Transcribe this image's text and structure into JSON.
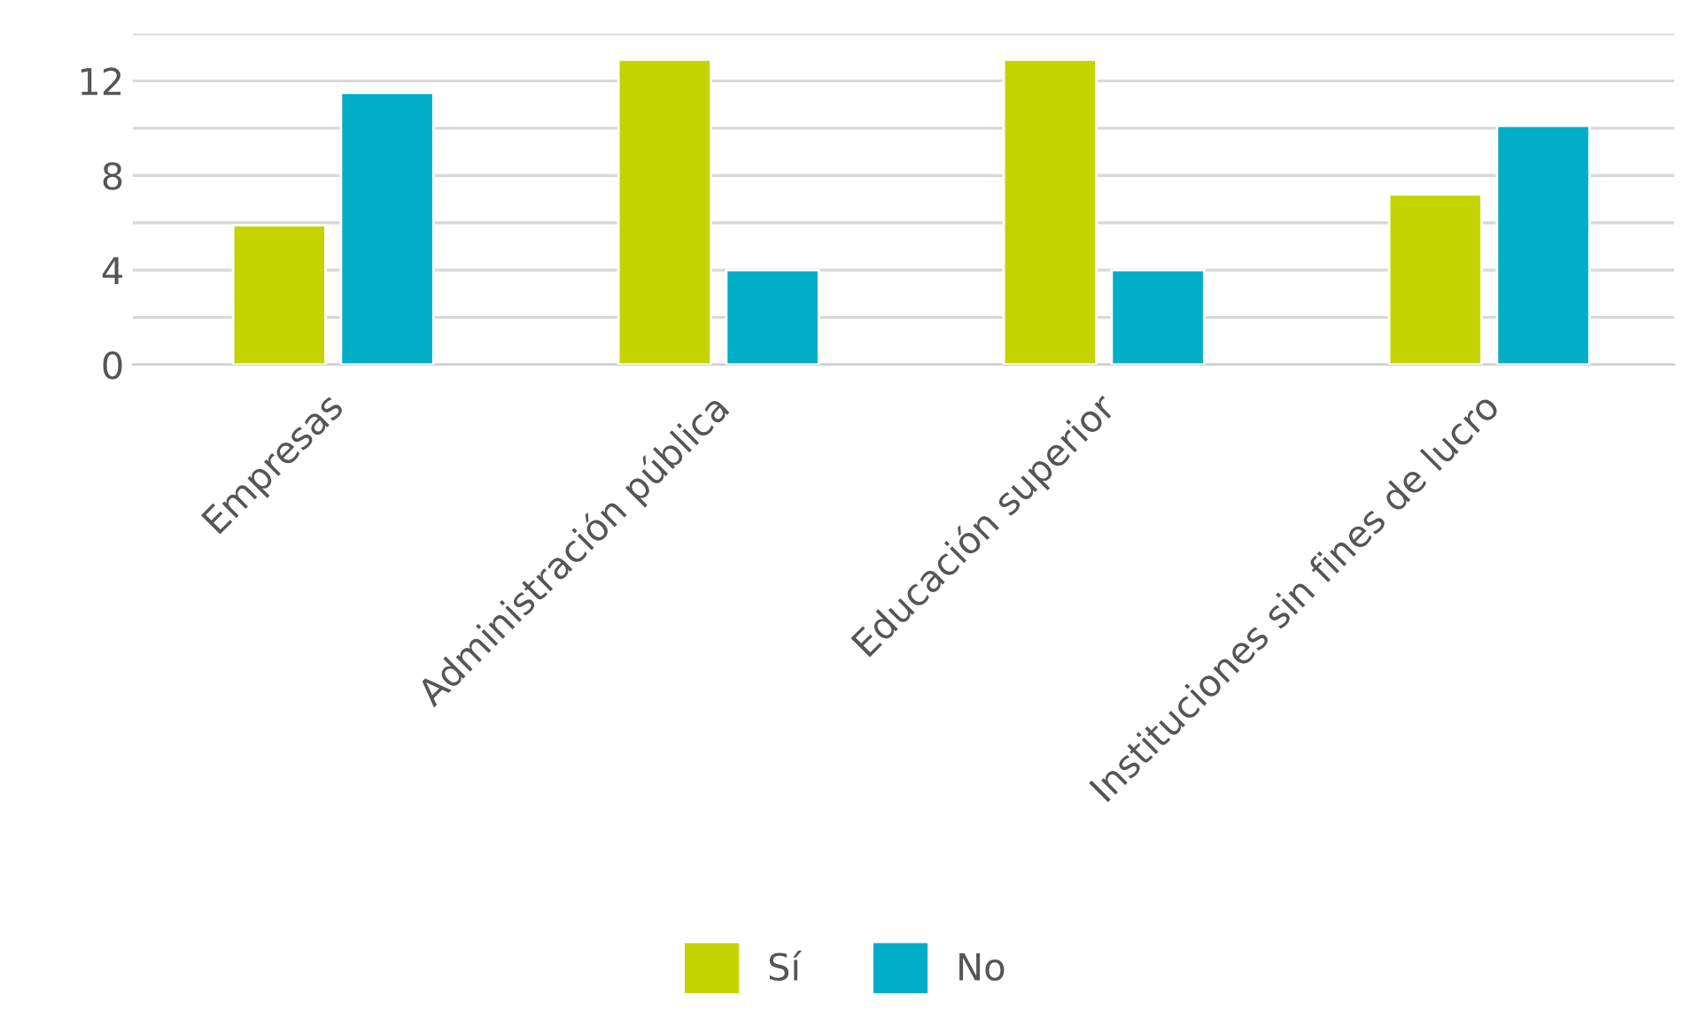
{
  "chart_data": {
    "type": "bar",
    "categories": [
      "Empresas",
      "Administración pública",
      "Educación superior",
      "Instituciones sin fines de lucro"
    ],
    "series": [
      {
        "name": "Sí",
        "color": "#c5d400",
        "values": [
          5.9,
          12.9,
          12.9,
          7.2
        ]
      },
      {
        "name": "No",
        "color": "#00aec7",
        "values": [
          11.5,
          4,
          4,
          10.1
        ]
      }
    ],
    "ylim": [
      0,
      14
    ],
    "yticks": [
      0,
      {
        "value": 2,
        "label": null
      },
      4,
      {
        "value": 6,
        "label": null
      },
      8,
      {
        "value": 10,
        "label": null
      },
      12,
      {
        "value": 14,
        "label": null
      }
    ],
    "grid": "y",
    "legend": "bottom"
  }
}
